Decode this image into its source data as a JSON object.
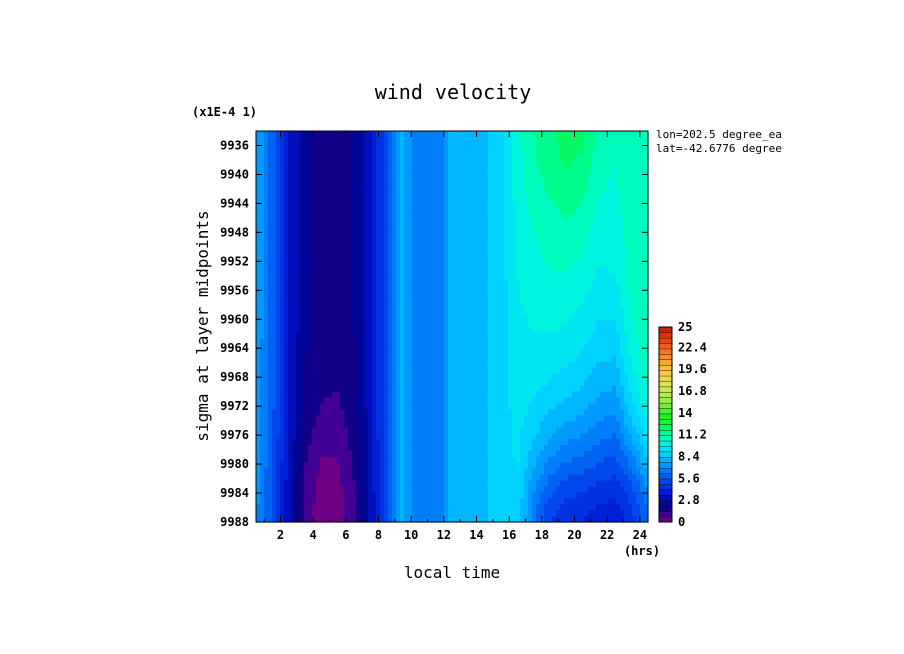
{
  "chart_data": {
    "type": "heatmap",
    "title": "wind velocity",
    "scale_note": "(x1E-4 1)",
    "xlabel": "local time",
    "x_units": "(hrs)",
    "ylabel": "sigma at layer midpoints",
    "info_lines": [
      "lon=202.5 degree_ea",
      "lat=-42.6776 degree"
    ],
    "x_ticks": [
      "2",
      "4",
      "6",
      "8",
      "10",
      "12",
      "14",
      "16",
      "18",
      "20",
      "22",
      "24"
    ],
    "y_ticks": [
      "9936",
      "9940",
      "9944",
      "9948",
      "9952",
      "9956",
      "9960",
      "9964",
      "9968",
      "9972",
      "9976",
      "9980",
      "9984",
      "9988"
    ],
    "colorbar_ticks": [
      "25",
      "22.4",
      "19.6",
      "16.8",
      "14",
      "11.2",
      "8.4",
      "5.6",
      "2.8",
      "0"
    ],
    "colorbar_range": [
      0,
      25
    ],
    "xlim": [
      0.5,
      24.5
    ],
    "ylim": [
      9988,
      9934
    ],
    "x": [
      0.5,
      1.5,
      2.5,
      3.5,
      4.5,
      5.5,
      6.5,
      7.5,
      8.5,
      9.5,
      10.5,
      11.5,
      12.5,
      13.5,
      14.5,
      15.5,
      16.5,
      17.5,
      18.5,
      19.5,
      20.5,
      21.5,
      22.5,
      23.5,
      24.5
    ],
    "y": [
      9934,
      9938,
      9942,
      9946,
      9950,
      9954,
      9958,
      9962,
      9966,
      9970,
      9974,
      9978,
      9982,
      9986,
      9988
    ],
    "z": [
      [
        7.6,
        6.0,
        3.6,
        2.2,
        1.9,
        1.9,
        2.1,
        3.2,
        5.5,
        7.9,
        6.3,
        6.4,
        7.9,
        8.2,
        8.3,
        8.8,
        10.3,
        11.2,
        11.8,
        12.2,
        12.0,
        11.0,
        10.6,
        11.0,
        11.2
      ],
      [
        7.6,
        6.0,
        3.6,
        2.2,
        1.9,
        1.9,
        2.1,
        3.2,
        5.5,
        7.9,
        6.3,
        6.4,
        7.9,
        8.2,
        8.3,
        8.8,
        10.2,
        11.1,
        11.6,
        12.0,
        11.8,
        10.8,
        10.5,
        11.0,
        11.2
      ],
      [
        7.6,
        6.0,
        3.6,
        2.2,
        1.9,
        1.9,
        2.1,
        3.2,
        5.5,
        7.9,
        6.3,
        6.4,
        7.9,
        8.2,
        8.3,
        8.8,
        10.1,
        10.9,
        11.3,
        11.6,
        11.4,
        10.6,
        10.4,
        11.0,
        11.2
      ],
      [
        7.6,
        6.0,
        3.6,
        2.2,
        1.9,
        1.9,
        2.1,
        3.2,
        5.5,
        7.9,
        6.3,
        6.4,
        7.9,
        8.2,
        8.3,
        8.8,
        10.0,
        10.6,
        11.0,
        11.2,
        11.0,
        10.3,
        10.2,
        10.9,
        11.2
      ],
      [
        7.6,
        6.0,
        3.6,
        2.2,
        1.9,
        1.9,
        2.1,
        3.2,
        5.5,
        7.9,
        6.3,
        6.4,
        7.9,
        8.2,
        8.3,
        8.8,
        9.9,
        10.4,
        10.7,
        10.8,
        10.6,
        10.0,
        10.0,
        10.8,
        11.2
      ],
      [
        7.6,
        6.0,
        3.6,
        2.2,
        1.9,
        1.9,
        2.1,
        3.2,
        5.5,
        7.9,
        6.3,
        6.4,
        7.9,
        8.2,
        8.3,
        8.8,
        9.8,
        10.2,
        10.4,
        10.5,
        10.2,
        9.7,
        9.8,
        10.7,
        11.2
      ],
      [
        7.6,
        6.0,
        3.6,
        2.2,
        1.9,
        1.9,
        2.1,
        3.2,
        5.5,
        7.9,
        6.3,
        6.4,
        7.9,
        8.2,
        8.3,
        8.8,
        9.7,
        10.0,
        10.1,
        10.1,
        9.8,
        9.3,
        9.4,
        10.5,
        11.1
      ],
      [
        7.6,
        6.0,
        3.6,
        2.2,
        1.9,
        1.8,
        2.1,
        3.2,
        5.5,
        7.9,
        6.3,
        6.4,
        7.9,
        8.2,
        8.3,
        8.8,
        9.6,
        9.8,
        9.8,
        9.7,
        9.4,
        8.9,
        8.9,
        10.3,
        11.0
      ],
      [
        7.5,
        6.0,
        3.6,
        2.1,
        1.7,
        1.6,
        2.0,
        3.2,
        5.5,
        7.9,
        6.3,
        6.4,
        7.9,
        8.2,
        8.3,
        8.8,
        9.5,
        9.5,
        9.4,
        9.2,
        8.9,
        8.4,
        8.3,
        9.9,
        10.8
      ],
      [
        7.5,
        5.9,
        3.5,
        2.0,
        1.5,
        1.4,
        1.9,
        3.2,
        5.5,
        7.9,
        6.3,
        6.4,
        7.9,
        8.2,
        8.3,
        8.8,
        9.4,
        9.2,
        8.9,
        8.6,
        8.3,
        7.8,
        7.6,
        9.3,
        10.5
      ],
      [
        7.4,
        5.8,
        3.4,
        1.8,
        1.2,
        1.1,
        1.8,
        3.1,
        5.5,
        7.9,
        6.3,
        6.4,
        7.9,
        8.2,
        8.3,
        8.8,
        9.3,
        8.8,
        8.2,
        7.8,
        7.5,
        7.0,
        6.8,
        8.4,
        9.9
      ],
      [
        7.4,
        5.7,
        3.3,
        1.6,
        0.8,
        0.8,
        1.6,
        3.1,
        5.4,
        7.9,
        6.3,
        6.4,
        7.9,
        8.2,
        8.3,
        8.8,
        9.2,
        8.2,
        7.3,
        6.8,
        6.5,
        6.1,
        5.8,
        7.2,
        8.9
      ],
      [
        7.3,
        5.6,
        3.1,
        1.3,
        0.5,
        0.5,
        1.4,
        3.0,
        5.4,
        7.9,
        6.3,
        6.4,
        7.9,
        8.2,
        8.3,
        8.8,
        9.1,
        7.4,
        6.2,
        5.6,
        5.4,
        5.0,
        4.8,
        5.8,
        7.5
      ],
      [
        7.2,
        5.5,
        3.0,
        1.1,
        0.3,
        0.4,
        1.2,
        2.9,
        5.4,
        7.9,
        6.3,
        6.4,
        7.9,
        8.2,
        8.3,
        8.8,
        9.0,
        6.6,
        5.2,
        4.6,
        4.4,
        4.1,
        3.9,
        4.8,
        6.4
      ],
      [
        7.2,
        5.5,
        3.0,
        1.1,
        0.3,
        0.4,
        1.2,
        2.9,
        5.4,
        7.9,
        6.3,
        6.4,
        7.9,
        8.2,
        8.3,
        8.8,
        9.0,
        6.5,
        5.0,
        4.4,
        4.2,
        3.9,
        3.7,
        4.6,
        6.2
      ]
    ]
  }
}
